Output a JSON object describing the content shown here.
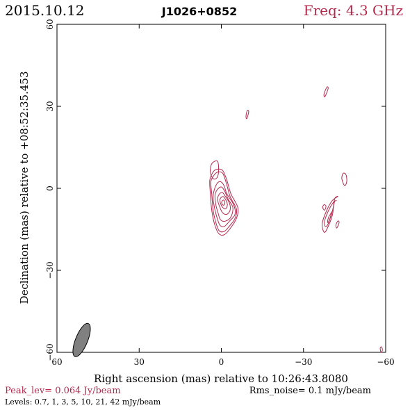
{
  "chart_data": {
    "type": "contour",
    "header": {
      "date": "2015.10.12",
      "source": "J1026+0852",
      "freq": "Freq: 4.3 GHz"
    },
    "xlabel": "Right ascension (mas) relative to 10:26:43.8080",
    "ylabel": "Declination (mas) relative to +08:52:35.453",
    "xlim": [
      60,
      -60
    ],
    "ylim": [
      -60,
      60
    ],
    "x_ticks": [
      60,
      30,
      0,
      -30,
      -60
    ],
    "y_ticks": [
      60,
      30,
      0,
      -30,
      -60
    ],
    "x_tick_labels": [
      "60",
      "30",
      "0",
      "−30",
      "−60"
    ],
    "y_tick_labels": [
      "60",
      "30",
      "0",
      "−30",
      "−60"
    ],
    "peak_text": "Peak_lev=  0.064 Jy/beam",
    "rms_text": "Rms_noise=   0.1 mJy/beam",
    "levels_text": "Levels: 0.7,    1,    3,    5,   10,   21,   42  mJy/beam",
    "levels": [
      0.7,
      1,
      3,
      5,
      10,
      21,
      42
    ],
    "contour_color": "#b5294d",
    "beam": {
      "x": 51,
      "y": -55.5,
      "major_mas": 6.5,
      "minor_mas": 2.2,
      "pa_deg": 22,
      "fill": "#808080"
    },
    "components": [
      {
        "name": "core",
        "x": 0,
        "y": -3,
        "contours": [
          {
            "level": 0.7,
            "pts": [
              [
                3,
                9
              ],
              [
                1.5,
                10
              ],
              [
                -0.5,
                9.5
              ],
              [
                -2,
                6
              ],
              [
                -3.5,
                1
              ],
              [
                -6,
                -4
              ],
              [
                -5.5,
                -8
              ],
              [
                -3,
                -12
              ],
              [
                -1,
                -14
              ],
              [
                1,
                -13.5
              ],
              [
                2.5,
                -10
              ],
              [
                3.5,
                -5
              ],
              [
                4,
                1
              ],
              [
                4.2,
                6
              ]
            ]
          },
          {
            "level": 1,
            "pts": [
              [
                2.5,
                8
              ],
              [
                1.2,
                9
              ],
              [
                -0.5,
                8.5
              ],
              [
                -1.8,
                5
              ],
              [
                -3.2,
                0
              ],
              [
                -5.5,
                -4.5
              ],
              [
                -5,
                -8
              ],
              [
                -2.8,
                -11
              ],
              [
                -1,
                -12.8
              ],
              [
                0.8,
                -12.5
              ],
              [
                2,
                -9.5
              ],
              [
                3,
                -5
              ],
              [
                3.5,
                1
              ],
              [
                3.8,
                5.5
              ]
            ]
          },
          {
            "level": 3,
            "pts": [
              [
                2,
                4
              ],
              [
                0.5,
                5.5
              ],
              [
                -1,
                4
              ],
              [
                -2,
                1
              ],
              [
                -4.5,
                -3
              ],
              [
                -5,
                -6.5
              ],
              [
                -3,
                -9
              ],
              [
                -1,
                -11
              ],
              [
                0.5,
                -10.5
              ],
              [
                1.5,
                -8
              ],
              [
                2.5,
                -4
              ],
              [
                3,
                0
              ]
            ]
          },
          {
            "level": 5,
            "pts": [
              [
                1.5,
                2.5
              ],
              [
                0,
                3.5
              ],
              [
                -1.2,
                2
              ],
              [
                -2.5,
                -1
              ],
              [
                -4.2,
                -4
              ],
              [
                -3.5,
                -7.5
              ],
              [
                -1.5,
                -9
              ],
              [
                0.3,
                -8.5
              ],
              [
                1.2,
                -6
              ],
              [
                2,
                -3
              ],
              [
                2.3,
                0.5
              ]
            ]
          },
          {
            "level": 10,
            "pts": [
              [
                1,
                0.5
              ],
              [
                -0.3,
                1.5
              ],
              [
                -1.5,
                0
              ],
              [
                -3,
                -2.5
              ],
              [
                -3.2,
                -5
              ],
              [
                -2,
                -6.5
              ],
              [
                -0.5,
                -6
              ],
              [
                0.5,
                -4
              ],
              [
                1.3,
                -1.5
              ]
            ]
          },
          {
            "level": 21,
            "pts": [
              [
                0.5,
                -1
              ],
              [
                -0.5,
                0
              ],
              [
                -1.5,
                -1
              ],
              [
                -2.2,
                -3
              ],
              [
                -1.6,
                -4.5
              ],
              [
                -0.5,
                -4
              ],
              [
                0.3,
                -2.5
              ]
            ]
          },
          {
            "level": 42,
            "pts": [
              [
                -0.2,
                -1.8
              ],
              [
                -0.9,
                -1.3
              ],
              [
                -1.3,
                -2.4
              ],
              [
                -0.8,
                -3.2
              ],
              [
                -0.2,
                -2.6
              ]
            ]
          }
        ]
      },
      {
        "name": "top-left-blob",
        "x": 0,
        "y": 0,
        "contours": [
          {
            "level": 0.7,
            "pts": [
              [
                3.5,
                9
              ],
              [
                1.5,
                10
              ],
              [
                1,
                7
              ],
              [
                1.5,
                4
              ],
              [
                3,
                3.5
              ],
              [
                4,
                6
              ]
            ]
          }
        ]
      },
      {
        "name": "east-jet",
        "x": 0,
        "y": 0,
        "contours": [
          {
            "level": 0.7,
            "pts": [
              [
                -42.5,
                -3
              ],
              [
                -41.5,
                -3.5
              ],
              [
                -41,
                -6
              ],
              [
                -40.5,
                -10
              ],
              [
                -38.5,
                -15
              ],
              [
                -37.5,
                -16
              ],
              [
                -36.8,
                -13
              ],
              [
                -38.5,
                -8
              ],
              [
                -40.5,
                -4.5
              ]
            ]
          },
          {
            "level": 1,
            "pts": [
              [
                -42,
                -4.5
              ],
              [
                -41.3,
                -5
              ],
              [
                -40.5,
                -8.5
              ],
              [
                -39,
                -13
              ],
              [
                -38,
                -14
              ],
              [
                -37.7,
                -12
              ],
              [
                -39.2,
                -8
              ],
              [
                -41,
                -5
              ]
            ]
          },
          {
            "level": 3,
            "pts": [
              [
                -40.8,
                -8
              ],
              [
                -40.3,
                -8.8
              ],
              [
                -39.5,
                -11.5
              ],
              [
                -38.8,
                -12.5
              ],
              [
                -39.2,
                -10.5
              ]
            ]
          }
        ]
      },
      {
        "name": "spots",
        "x": 0,
        "y": 0,
        "contours": [
          {
            "level": 0.7,
            "pts": [
              [
                -9.5,
                28.5
              ],
              [
                -10,
                28
              ],
              [
                -9.3,
                25.5
              ],
              [
                -9,
                26.5
              ]
            ]
          },
          {
            "level": 0.7,
            "pts": [
              [
                -38.5,
                37
              ],
              [
                -39,
                36.5
              ],
              [
                -37.8,
                33.5
              ],
              [
                -37.5,
                34.5
              ]
            ]
          },
          {
            "level": 0.7,
            "pts": [
              [
                -45.5,
                5
              ],
              [
                -44.5,
                5.5
              ],
              [
                -44,
                3.5
              ],
              [
                -45,
                1
              ],
              [
                -45.8,
                2.5
              ]
            ]
          },
          {
            "level": 0.7,
            "pts": [
              [
                -37.5,
                -6
              ],
              [
                -37,
                -7
              ],
              [
                -37.7,
                -8
              ],
              [
                -38.2,
                -6.5
              ]
            ]
          },
          {
            "level": 0.7,
            "pts": [
              [
                -42.5,
                -12
              ],
              [
                -43,
                -12.5
              ],
              [
                -42.2,
                -14.5
              ],
              [
                -41.8,
                -13.5
              ]
            ]
          },
          {
            "level": 0.7,
            "pts": [
              [
                -58.5,
                -58
              ],
              [
                -58,
                -58.5
              ],
              [
                -58.3,
                -60
              ],
              [
                -58.8,
                -59.2
              ]
            ]
          }
        ]
      }
    ]
  }
}
